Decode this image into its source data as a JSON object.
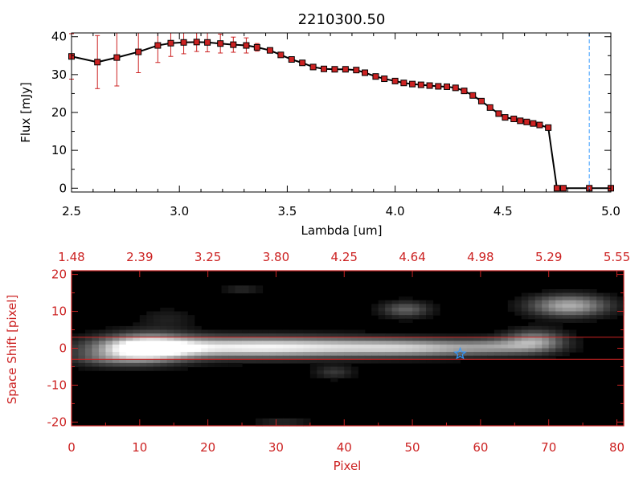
{
  "colors": {
    "axis_red": "#cc2222",
    "marker_red": "#cc2222",
    "line_black": "#000000",
    "dash_blue": "#3399ff",
    "star_blue": "#3399ff",
    "image_bg": "#000000"
  },
  "chart_data": [
    {
      "type": "line",
      "title": "2210300.50",
      "xlabel": "Lambda [um]",
      "ylabel": "Flux [mJy]",
      "xlim": [
        2.5,
        5.0
      ],
      "ylim": [
        -1,
        41
      ],
      "xticks": [
        "2.5",
        "3.0",
        "3.5",
        "4.0",
        "4.5",
        "5.0"
      ],
      "yticks": [
        "0",
        "10",
        "20",
        "30",
        "40"
      ],
      "grid": false,
      "vline_x": 4.9,
      "series": [
        {
          "x": [
            2.5,
            2.62,
            2.71,
            2.81,
            2.9,
            2.96,
            3.02,
            3.08,
            3.13,
            3.19,
            3.25,
            3.31,
            3.36,
            3.42,
            3.47,
            3.52,
            3.57,
            3.62,
            3.67,
            3.72,
            3.77,
            3.82,
            3.86,
            3.91,
            3.95,
            4.0,
            4.04,
            4.08,
            4.12,
            4.16,
            4.2,
            4.24,
            4.28,
            4.32,
            4.36,
            4.4,
            4.44,
            4.48,
            4.51,
            4.55,
            4.58,
            4.61,
            4.64,
            4.67,
            4.71,
            4.75,
            4.78,
            4.9,
            5.0
          ],
          "y": [
            34.8,
            33.3,
            34.5,
            36.0,
            37.7,
            38.3,
            38.5,
            38.6,
            38.5,
            38.2,
            37.9,
            37.7,
            37.2,
            36.4,
            35.2,
            34.0,
            33.1,
            32.0,
            31.5,
            31.4,
            31.4,
            31.2,
            30.5,
            29.5,
            28.9,
            28.3,
            27.8,
            27.5,
            27.3,
            27.1,
            26.9,
            26.8,
            26.5,
            25.7,
            24.5,
            23.0,
            21.3,
            19.7,
            18.7,
            18.3,
            17.8,
            17.5,
            17.1,
            16.7,
            16.0,
            0.0,
            0.0,
            0.0,
            0.0
          ],
          "yerr": [
            6.0,
            7.0,
            7.5,
            5.5,
            4.5,
            3.5,
            3.0,
            2.5,
            2.5,
            2.5,
            2.0,
            2.0,
            1.0,
            0.6,
            0.5,
            0.5,
            0.4,
            0.4,
            0.4,
            0.4,
            0.4,
            0.4,
            0.4,
            0.4,
            0.4,
            0.4,
            0.4,
            0.4,
            0.4,
            0.4,
            0.4,
            0.4,
            0.4,
            0.4,
            0.4,
            0.4,
            0.4,
            0.4,
            0.4,
            0.4,
            0.4,
            0.4,
            0.4,
            0.4,
            0.4,
            0.4,
            0.4,
            0.4,
            0.4
          ]
        }
      ]
    },
    {
      "type": "heatmap",
      "xlabel": "Pixel",
      "ylabel": "Space Shift [pixel]",
      "xlim": [
        0,
        81
      ],
      "ylim": [
        -21,
        21
      ],
      "xticks": [
        "0",
        "10",
        "20",
        "30",
        "40",
        "50",
        "60",
        "70",
        "80"
      ],
      "yticks": [
        "-20",
        "-10",
        "0",
        "10",
        "20"
      ],
      "top_xticks": [
        "1.48",
        "2.39",
        "3.25",
        "3.80",
        "4.25",
        "4.64",
        "4.98",
        "5.29",
        "5.55"
      ],
      "hlines": [
        3,
        -3
      ],
      "star": {
        "x": 57,
        "y": -1.5
      },
      "blobs": [
        {
          "x": 11,
          "y": 0,
          "sx": 4.5,
          "sy": 2.5,
          "a": 1.0
        },
        {
          "x": 22,
          "y": 0.2,
          "sx": 12,
          "sy": 2.0,
          "a": 0.62
        },
        {
          "x": 38,
          "y": 0.3,
          "sx": 14,
          "sy": 1.8,
          "a": 0.55
        },
        {
          "x": 52,
          "y": 0,
          "sx": 8,
          "sy": 1.5,
          "a": 0.42
        },
        {
          "x": 63,
          "y": 0.5,
          "sx": 4,
          "sy": 1.5,
          "a": 0.3
        },
        {
          "x": 68,
          "y": 2,
          "sx": 3,
          "sy": 2,
          "a": 0.55
        },
        {
          "x": 73,
          "y": 11.5,
          "sx": 4,
          "sy": 2,
          "a": 0.68
        },
        {
          "x": 49,
          "y": 10.5,
          "sx": 2.5,
          "sy": 1.5,
          "a": 0.38
        },
        {
          "x": 38.5,
          "y": -6.5,
          "sx": 2,
          "sy": 1.2,
          "a": 0.22
        },
        {
          "x": 25,
          "y": 16,
          "sx": 2,
          "sy": 1,
          "a": 0.15
        },
        {
          "x": 5,
          "y": -3,
          "sx": 4,
          "sy": 1.5,
          "a": 0.25
        },
        {
          "x": 31,
          "y": -20,
          "sx": 3,
          "sy": 1,
          "a": 0.15
        },
        {
          "x": 14,
          "y": 8,
          "sx": 3,
          "sy": 2,
          "a": 0.12
        }
      ]
    }
  ]
}
